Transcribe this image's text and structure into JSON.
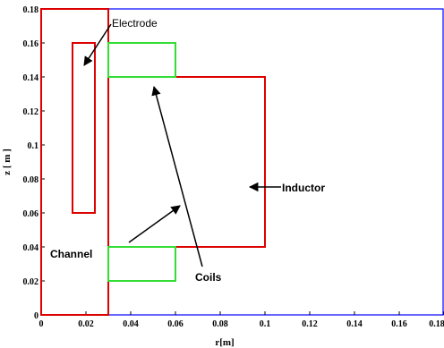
{
  "plot": {
    "xlabel": "r[m]",
    "ylabel": "z [ m ]",
    "xlim": [
      0,
      0.18
    ],
    "ylim": [
      0,
      0.18
    ],
    "xticks": [
      "0",
      "0.02",
      "0.04",
      "0.06",
      "0.08",
      "0.1",
      "0.12",
      "0.14",
      "0.16",
      "0.18"
    ],
    "yticks": [
      "0",
      "0.02",
      "0.04",
      "0.06",
      "0.08",
      "0.1",
      "0.12",
      "0.14",
      "0.16",
      "0.18"
    ],
    "frame_color": "#0000ff",
    "grid": false
  },
  "regions": [
    {
      "name": "Channel",
      "color": "#dd0000",
      "r": [
        0,
        0.03
      ],
      "z": [
        0,
        0.18
      ]
    },
    {
      "name": "Electrode",
      "color": "#dd0000",
      "r": [
        0.014,
        0.024
      ],
      "z": [
        0.06,
        0.16
      ]
    },
    {
      "name": "Inductor",
      "color": "#dd0000",
      "r": [
        0.03,
        0.1
      ],
      "z": [
        0.04,
        0.14
      ]
    },
    {
      "name": "Coil upper",
      "color": "#33dd33",
      "r": [
        0.03,
        0.06
      ],
      "z": [
        0.14,
        0.16
      ]
    },
    {
      "name": "Coil lower",
      "color": "#33dd33",
      "r": [
        0.03,
        0.06
      ],
      "z": [
        0.02,
        0.04
      ]
    }
  ],
  "annotations": {
    "electrode": "Electrode",
    "inductor": "Inductor",
    "channel": "Channel",
    "coils": "Coils"
  }
}
